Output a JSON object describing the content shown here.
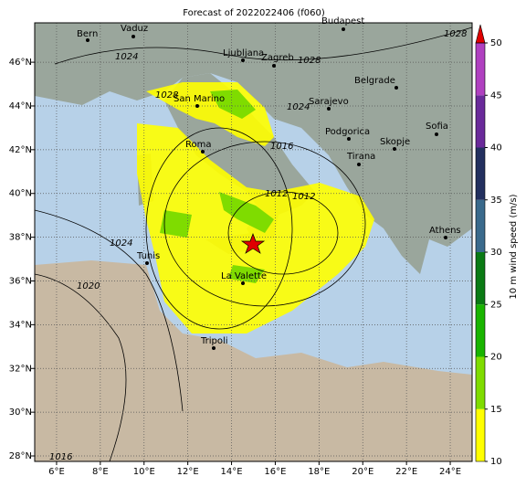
{
  "map_data": {
    "title": "Forecast of 2022022406 (f060)",
    "lonlim": [
      5,
      25
    ],
    "latlim": [
      27.75,
      47.8
    ],
    "lonticks": [
      {
        "value": 6,
        "label": "6°E"
      },
      {
        "value": 8,
        "label": "8°E"
      },
      {
        "value": 10,
        "label": "10°E"
      },
      {
        "value": 12,
        "label": "12°E"
      },
      {
        "value": 14,
        "label": "14°E"
      },
      {
        "value": 16,
        "label": "16°E"
      },
      {
        "value": 18,
        "label": "18°E"
      },
      {
        "value": 20,
        "label": "20°E"
      },
      {
        "value": 22,
        "label": "22°E"
      },
      {
        "value": 24,
        "label": "24°E"
      }
    ],
    "latticks": [
      {
        "value": 28,
        "label": "28°N"
      },
      {
        "value": 30,
        "label": "30°N"
      },
      {
        "value": 32,
        "label": "32°N"
      },
      {
        "value": 34,
        "label": "34°N"
      },
      {
        "value": 36,
        "label": "36°N"
      },
      {
        "value": 38,
        "label": "38°N"
      },
      {
        "value": 40,
        "label": "40°N"
      },
      {
        "value": 42,
        "label": "42°N"
      },
      {
        "value": 44,
        "label": "44°N"
      },
      {
        "value": 46,
        "label": "46°N"
      }
    ],
    "grid": true,
    "cities": [
      "Bern",
      "Vaduz",
      "Ljubljana",
      "Zagreb",
      "Budapest",
      "Belgrade",
      "San Marino",
      "Sarajevo",
      "Podgorica",
      "Sofia",
      "Skopje",
      "Roma",
      "Tirana",
      "Athens",
      "Tunis",
      "La Valette",
      "Tripoli"
    ],
    "isobar_labels": [
      "1028",
      "1028",
      "1024",
      "1028",
      "1024",
      "1016",
      "1012",
      "1012",
      "1024",
      "1020",
      "1016"
    ],
    "colorbar": {
      "label": "10 m wind speed (m/s)",
      "lim": [
        10,
        50
      ],
      "ticks": [
        10,
        15,
        20,
        25,
        30,
        35,
        40,
        45,
        50
      ],
      "colors": [
        "#ffff00",
        "#7fdc00",
        "#19b400",
        "#0a7a14",
        "#3a6a8c",
        "#23305f",
        "#6a2a9a",
        "#b040c0"
      ],
      "extend_color": "#e00000"
    }
  }
}
